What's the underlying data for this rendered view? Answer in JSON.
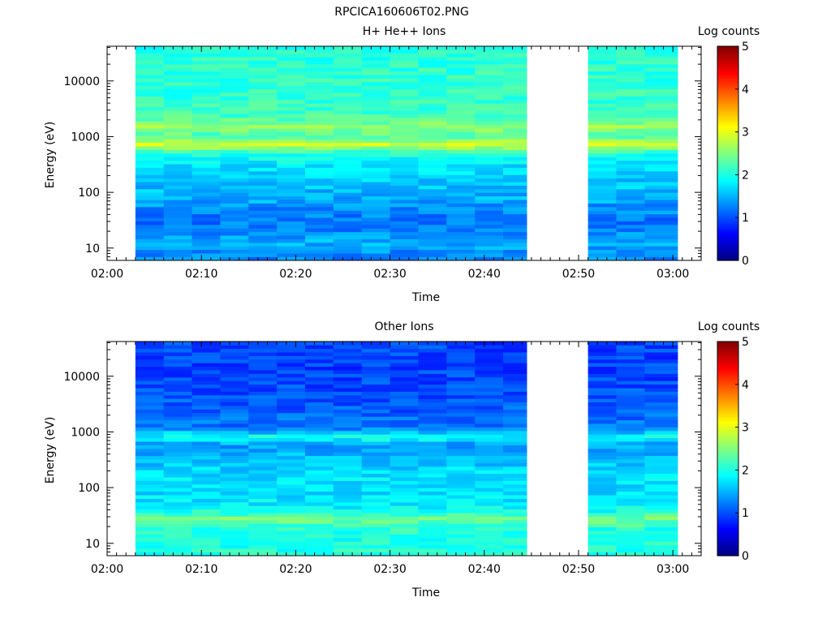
{
  "page_title": "RPCICA160606T02.PNG",
  "chart_data": [
    {
      "type": "heatmap",
      "title": "H+ He++ Ions",
      "xlabel": "Time",
      "ylabel": "Energy (eV)",
      "y_scale": "log",
      "ylim": [
        6,
        42000
      ],
      "xlim": [
        "02:00",
        "03:03"
      ],
      "x_ticks": [
        "02:00",
        "02:10",
        "02:20",
        "02:30",
        "02:40",
        "02:50",
        "03:00"
      ],
      "y_ticks": [
        "10",
        "100",
        "1000",
        "10000"
      ],
      "data_intervals": [
        [
          "02:03",
          "02:44.5"
        ],
        [
          "02:51",
          "03:00.5"
        ]
      ],
      "time_columns": [
        "02:03",
        "02:06",
        "02:09",
        "02:12",
        "02:15",
        "02:18",
        "02:21",
        "02:24",
        "02:27",
        "02:30",
        "02:33",
        "02:36",
        "02:39",
        "02:42",
        "02:51",
        "02:54",
        "02:57"
      ],
      "colorbar": {
        "label": "Log counts",
        "range": [
          0,
          5
        ],
        "ticks": [
          "0",
          "1",
          "2",
          "3",
          "4",
          "5"
        ]
      },
      "profile": [
        {
          "energy": 8,
          "log_counts": 1.3
        },
        {
          "energy": 12,
          "log_counts": 1.5
        },
        {
          "energy": 20,
          "log_counts": 1.3
        },
        {
          "energy": 30,
          "log_counts": 1.2
        },
        {
          "energy": 50,
          "log_counts": 1.3
        },
        {
          "energy": 80,
          "log_counts": 1.5
        },
        {
          "energy": 150,
          "log_counts": 1.6
        },
        {
          "energy": 300,
          "log_counts": 1.75
        },
        {
          "energy": 500,
          "log_counts": 2.05
        },
        {
          "energy": 750,
          "log_counts": 2.95
        },
        {
          "energy": 1000,
          "log_counts": 2.2
        },
        {
          "energy": 1500,
          "log_counts": 2.6
        },
        {
          "energy": 2500,
          "log_counts": 2.15
        },
        {
          "energy": 6000,
          "log_counts": 2.1
        },
        {
          "energy": 15000,
          "log_counts": 2.1
        },
        {
          "energy": 40000,
          "log_counts": 2.05
        }
      ]
    },
    {
      "type": "heatmap",
      "title": "Other Ions",
      "xlabel": "Time",
      "ylabel": "Energy (eV)",
      "y_scale": "log",
      "ylim": [
        6,
        42000
      ],
      "xlim": [
        "02:00",
        "03:03"
      ],
      "x_ticks": [
        "02:00",
        "02:10",
        "02:20",
        "02:30",
        "02:40",
        "02:50",
        "03:00"
      ],
      "y_ticks": [
        "10",
        "100",
        "1000",
        "10000"
      ],
      "data_intervals": [
        [
          "02:03",
          "02:44.5"
        ],
        [
          "02:51",
          "03:00.5"
        ]
      ],
      "time_columns": [
        "02:03",
        "02:06",
        "02:09",
        "02:12",
        "02:15",
        "02:18",
        "02:21",
        "02:24",
        "02:27",
        "02:30",
        "02:33",
        "02:36",
        "02:39",
        "02:42",
        "02:51",
        "02:54",
        "02:57"
      ],
      "colorbar": {
        "label": "Log counts",
        "range": [
          0,
          5
        ],
        "ticks": [
          "0",
          "1",
          "2",
          "3",
          "4",
          "5"
        ]
      },
      "profile": [
        {
          "energy": 8,
          "log_counts": 2.05
        },
        {
          "energy": 12,
          "log_counts": 2.0
        },
        {
          "energy": 18,
          "log_counts": 2.05
        },
        {
          "energy": 28,
          "log_counts": 2.45
        },
        {
          "energy": 40,
          "log_counts": 1.9
        },
        {
          "energy": 80,
          "log_counts": 1.7
        },
        {
          "energy": 150,
          "log_counts": 1.75
        },
        {
          "energy": 300,
          "log_counts": 1.6
        },
        {
          "energy": 600,
          "log_counts": 1.4
        },
        {
          "energy": 780,
          "log_counts": 2.0
        },
        {
          "energy": 1200,
          "log_counts": 1.2
        },
        {
          "energy": 3000,
          "log_counts": 1.05
        },
        {
          "energy": 10000,
          "log_counts": 0.95
        },
        {
          "energy": 40000,
          "log_counts": 0.95
        }
      ]
    }
  ]
}
